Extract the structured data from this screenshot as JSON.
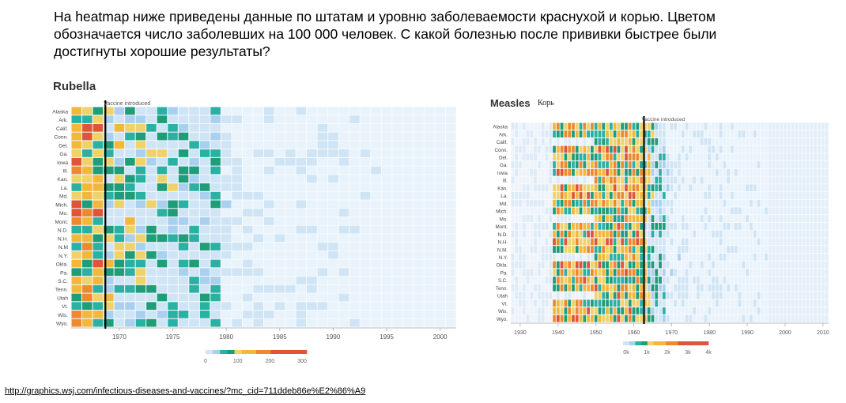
{
  "question": {
    "lines": [
      "На heatmap ниже приведены данные по штатам и уровню заболеваемости краснухой и корью. Цветом",
      "обозначается число заболевших на 100 000 человек. С какой болезнью после прививки быстрее были",
      "достигнуты хорошие результаты?"
    ]
  },
  "source_link": "http://graphics.wsj.com/infectious-diseases-and-vaccines/?mc_cid=711ddeb86e%E2%86%A9",
  "colors": {
    "scale": [
      "#e8f3fb",
      "#cfe4f5",
      "#a9d0ef",
      "#2bb1a3",
      "#1f9c78",
      "#f0d26a",
      "#f3b73a",
      "#ee8a2e",
      "#e0543a"
    ],
    "grid_empty": "#eef4fa",
    "vaccine_line": "#000000"
  },
  "chart_data": [
    {
      "type": "heatmap",
      "title": "Rubella",
      "annotation": "Vaccine introduced",
      "vaccine_year": 1969,
      "x_range": [
        1966,
        2002
      ],
      "x_ticks": [
        "1970",
        "1975",
        "1980",
        "1985",
        "1990",
        "1995",
        "2000"
      ],
      "x_tick_values": [
        1970,
        1975,
        1980,
        1985,
        1990,
        1995,
        2000
      ],
      "row_labels": [
        "Alaska",
        "Ark.",
        "Calif.",
        "Conn.",
        "Del.",
        "Ga.",
        "Iowa",
        "Ill.",
        "Kan.",
        "La.",
        "Md.",
        "Mich.",
        "Mo.",
        "Mont.",
        "N.D.",
        "N.H.",
        "N.M",
        "N.Y.",
        "Okla.",
        "Pa.",
        "S.C.",
        "Tenn.",
        "Utah",
        "Vt.",
        "Wis.",
        "Wyo."
      ],
      "legend_ticks": [
        "0",
        "100",
        "200",
        "300"
      ],
      "legend_range": [
        0,
        300
      ],
      "data_end_year": 1979,
      "seed": 17
    },
    {
      "type": "heatmap",
      "title": "Measles",
      "annotation": "Vaccine introduced",
      "vaccine_year": 1963,
      "x_range": [
        1928,
        2012
      ],
      "x_ticks": [
        "1930",
        "1940",
        "1950",
        "1960",
        "1970",
        "1980",
        "1990",
        "2000",
        "2010"
      ],
      "x_tick_values": [
        1930,
        1940,
        1950,
        1960,
        1970,
        1980,
        1990,
        2000,
        2010
      ],
      "row_labels": [
        "Alaska",
        "Ark.",
        "Calif.",
        "Conn.",
        "Del.",
        "Ga.",
        "Iowa",
        "Ill.",
        "Kan.",
        "La.",
        "Md.",
        "Mich.",
        "Mo.",
        "Mont.",
        "N.D.",
        "N.H.",
        "N.M.",
        "N.Y.",
        "Okla.",
        "Pa.",
        "S.C.",
        "Tenn.",
        "Utah",
        "Vt.",
        "Wis.",
        "Wyo."
      ],
      "legend_ticks": [
        "0k",
        "1k",
        "2k",
        "3k",
        "4k"
      ],
      "legend_range": [
        0,
        4000
      ],
      "data_end_year": 1968,
      "seed": 41
    }
  ],
  "labels": {
    "measles_annotation": "Корь"
  }
}
